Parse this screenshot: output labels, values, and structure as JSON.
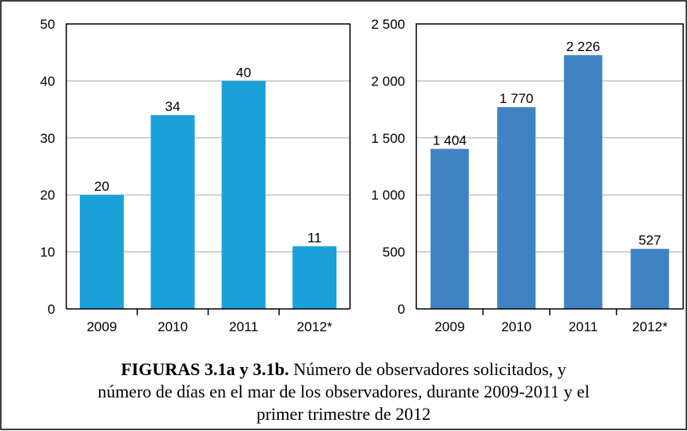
{
  "chart_data": [
    {
      "type": "bar",
      "categories": [
        "2009",
        "2010",
        "2011",
        "2012*"
      ],
      "values": [
        20,
        34,
        40,
        11
      ],
      "color": "#1ba1da",
      "ylim": [
        0,
        50
      ],
      "yticks": [
        0,
        10,
        20,
        30,
        40,
        50
      ],
      "grid": true
    },
    {
      "type": "bar",
      "categories": [
        "2009",
        "2010",
        "2011",
        "2012*"
      ],
      "values": [
        1404,
        1770,
        2226,
        527
      ],
      "value_labels": [
        "1 404",
        "1 770",
        "2 226",
        "527"
      ],
      "color": "#4083c5",
      "ylim": [
        0,
        2500
      ],
      "yticks": [
        0,
        500,
        {
          "value": 1000,
          "label": "1 000"
        },
        {
          "value": 1500,
          "label": "1 500"
        },
        {
          "value": 2000,
          "label": "2 000"
        },
        {
          "value": 2500,
          "label": "2 500"
        }
      ],
      "grid": true
    }
  ],
  "caption": {
    "label": "FIGURAS 3.1a y 3.1b.",
    "lines": [
      "Número de observadores solicitados, y",
      "número de días en el mar de los observadores, durante 2009-2011 y el",
      "primer trimestre de 2012"
    ]
  }
}
